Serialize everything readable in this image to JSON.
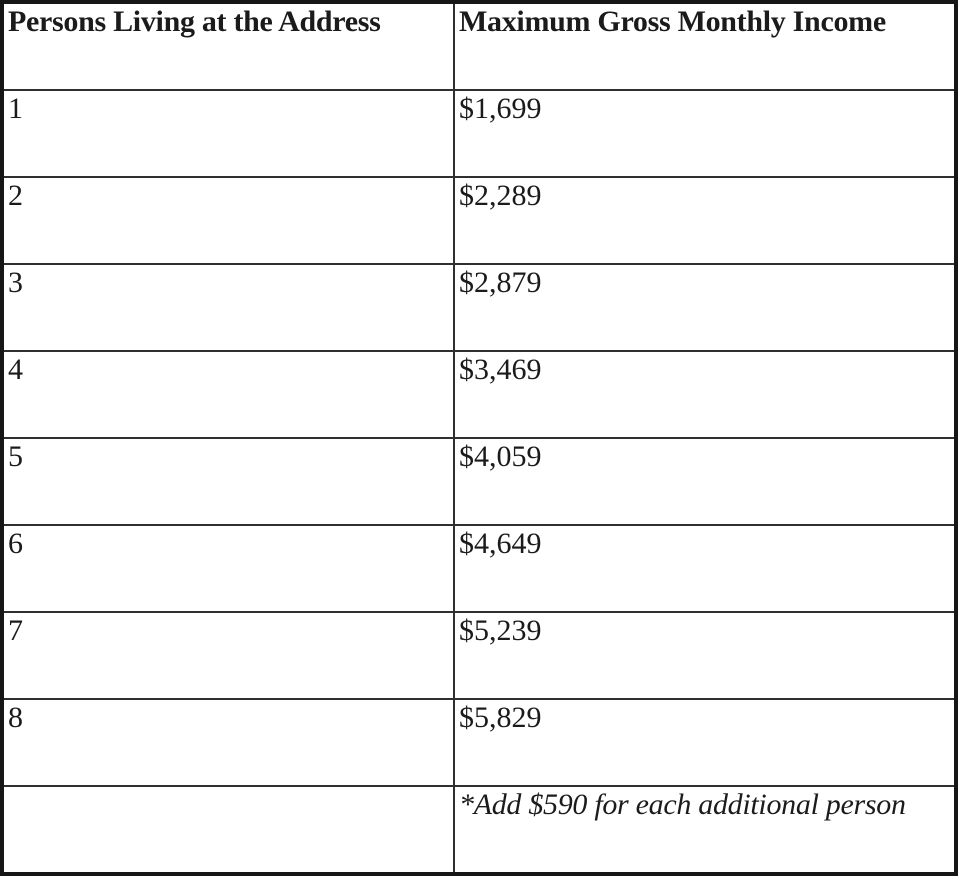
{
  "table": {
    "columns": [
      {
        "label": "Persons Living at the Address"
      },
      {
        "label": "Maximum Gross Monthly Income"
      }
    ],
    "rows": [
      {
        "persons": "1",
        "income": "$1,699"
      },
      {
        "persons": "2",
        "income": "$2,289"
      },
      {
        "persons": "3",
        "income": "$2,879"
      },
      {
        "persons": "4",
        "income": "$3,469"
      },
      {
        "persons": "5",
        "income": "$4,059"
      },
      {
        "persons": "6",
        "income": "$4,649"
      },
      {
        "persons": "7",
        "income": "$5,239"
      },
      {
        "persons": "8",
        "income": "$5,829"
      }
    ],
    "footer": {
      "left": "",
      "note": "*Add $590 for each additional person"
    }
  },
  "colors": {
    "border_outer": "#161616",
    "border_inner": "#2f2f2f",
    "text": "#1b1b1b",
    "background": "#ffffff"
  }
}
